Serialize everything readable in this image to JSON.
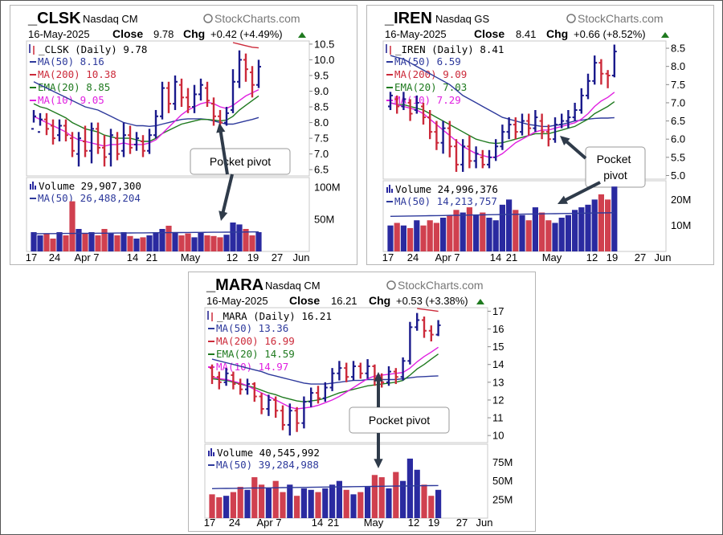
{
  "brand": "StockCharts.com",
  "callout_text": "Pocket pivot",
  "colors": {
    "up_bar": "#1a1a8c",
    "down_bar": "#cc2a3a",
    "ma50": "#2e3a9c",
    "ma200": "#cc2a3a",
    "ema20": "#1f7a1f",
    "ma10": "#e020e0",
    "volume_up": "#2a2aa0",
    "volume_down": "#d0404f",
    "gain": "#1f7a1f"
  },
  "icons": [
    "candlestick-icon",
    "bar-chart-icon",
    "gain-triangle-icon",
    "stockcharts-logo-icon",
    "arrow-icon"
  ],
  "chart_data": [
    {
      "type": "bar",
      "symbol": "_CLSK",
      "exchange": "Nasdaq CM",
      "date": "16-May-2025",
      "close_label": "Close",
      "close": "9.78",
      "chg_label": "Chg",
      "chg": "+0.42 (+4.49%)",
      "price_legend": "_CLSK (Daily) 9.78",
      "legend": [
        "MA(50) 8.16",
        "MA(200) 10.38",
        "EMA(20) 8.85",
        "MA(10) 9.05"
      ],
      "volume_legend": "Volume 29,907,300",
      "volume_ma_legend": "MA(50) 26,488,204",
      "price_ticks": [
        "10.5",
        "10.0",
        "9.5",
        "9.0",
        "8.5",
        "8.0",
        "7.5",
        "7.0",
        "6.5"
      ],
      "volume_ticks": [
        "100M",
        "50M"
      ],
      "x_labels": [
        "17",
        "24",
        "Apr 7",
        "14",
        "21",
        "May",
        "12",
        "19",
        "27",
        "Jun"
      ],
      "ylim": [
        6.3,
        10.6
      ],
      "vmax": 110,
      "bars": [
        [
          7.8,
          8.2,
          8.4,
          8.0
        ],
        [
          7.7,
          8.1,
          8.3,
          7.9
        ],
        [
          8.1,
          7.8,
          8.3,
          7.6
        ],
        [
          7.9,
          7.5,
          8.1,
          7.3
        ],
        [
          7.6,
          7.9,
          8.1,
          7.4
        ],
        [
          7.9,
          7.6,
          8.1,
          7.4
        ],
        [
          7.5,
          7.1,
          7.7,
          6.9
        ],
        [
          7.0,
          7.5,
          7.7,
          6.6
        ],
        [
          7.4,
          7.1,
          7.9,
          6.9
        ],
        [
          7.1,
          7.8,
          8.0,
          6.7
        ],
        [
          7.8,
          7.2,
          8.0,
          7.0
        ],
        [
          7.2,
          6.9,
          7.6,
          6.6
        ],
        [
          7.0,
          7.6,
          7.8,
          6.6
        ],
        [
          7.5,
          7.0,
          7.7,
          6.8
        ],
        [
          7.1,
          7.6,
          8.0,
          6.9
        ],
        [
          7.6,
          7.2,
          7.9,
          7.0
        ],
        [
          7.3,
          7.5,
          7.7,
          7.1
        ],
        [
          7.4,
          7.1,
          7.6,
          6.9
        ],
        [
          7.1,
          7.6,
          7.8,
          7.0
        ],
        [
          7.6,
          8.2,
          8.4,
          7.5
        ],
        [
          8.2,
          9.1,
          9.3,
          8.1
        ],
        [
          9.1,
          8.6,
          9.3,
          8.3
        ],
        [
          8.6,
          9.3,
          9.5,
          8.4
        ],
        [
          9.2,
          8.8,
          9.4,
          8.5
        ],
        [
          8.8,
          8.5,
          9.1,
          8.3
        ],
        [
          8.5,
          8.9,
          9.2,
          8.3
        ],
        [
          8.9,
          9.2,
          9.4,
          8.7
        ],
        [
          9.1,
          8.7,
          9.3,
          8.5
        ],
        [
          8.6,
          8.2,
          8.8,
          7.9
        ],
        [
          8.2,
          8.0,
          8.4,
          7.8
        ],
        [
          8.0,
          8.3,
          8.5,
          7.9
        ],
        [
          8.4,
          9.3,
          9.7,
          8.3
        ],
        [
          9.3,
          10.0,
          10.3,
          9.1
        ],
        [
          10.0,
          9.7,
          10.2,
          9.3
        ],
        [
          9.6,
          9.2,
          9.8,
          8.8
        ],
        [
          9.2,
          9.78,
          10.0,
          9.1
        ]
      ],
      "volume": [
        30,
        25,
        28,
        20,
        30,
        25,
        78,
        35,
        28,
        30,
        25,
        35,
        28,
        25,
        30,
        24,
        20,
        22,
        25,
        30,
        35,
        40,
        30,
        25,
        28,
        22,
        30,
        25,
        24,
        22,
        26,
        45,
        42,
        35,
        25,
        30
      ],
      "ma50": [
        9.3,
        9.2,
        9.1,
        9.0,
        8.9,
        8.8,
        8.7,
        8.6,
        8.5,
        8.45,
        8.4,
        8.3,
        8.2,
        8.1,
        8.0,
        7.95,
        7.9,
        7.9,
        7.88,
        7.9,
        7.95,
        8.0,
        8.05,
        8.1,
        8.12,
        8.12,
        8.12,
        8.1,
        8.05,
        8.0,
        7.95,
        7.95,
        8.0,
        8.05,
        8.1,
        8.16
      ],
      "ma200": [
        null,
        null,
        null,
        null,
        null,
        null,
        null,
        null,
        null,
        null,
        null,
        null,
        null,
        null,
        null,
        null,
        null,
        null,
        null,
        null,
        null,
        null,
        null,
        null,
        null,
        null,
        null,
        null,
        null,
        null,
        null,
        10.55,
        10.5,
        10.45,
        10.4,
        10.38
      ],
      "ema20": [
        8.6,
        8.5,
        8.45,
        8.35,
        8.25,
        8.15,
        8.0,
        7.9,
        7.8,
        7.75,
        7.7,
        7.6,
        7.55,
        7.5,
        7.5,
        7.5,
        7.45,
        7.4,
        7.4,
        7.5,
        7.65,
        7.75,
        7.85,
        7.95,
        8.0,
        8.05,
        8.1,
        8.1,
        8.08,
        8.05,
        8.08,
        8.2,
        8.4,
        8.55,
        8.7,
        8.85
      ],
      "ma10": [
        8.2,
        8.1,
        8.0,
        7.9,
        7.8,
        7.7,
        7.55,
        7.45,
        7.4,
        7.35,
        7.3,
        7.25,
        7.3,
        7.3,
        7.35,
        7.3,
        7.3,
        7.3,
        7.35,
        7.45,
        7.65,
        7.85,
        8.05,
        8.25,
        8.4,
        8.5,
        8.6,
        8.65,
        8.6,
        8.5,
        8.45,
        8.55,
        8.7,
        8.85,
        8.95,
        9.05
      ],
      "pivot_bar": 31
    },
    {
      "type": "bar",
      "symbol": "_IREN",
      "exchange": "Nasdaq GS",
      "date": "16-May-2025",
      "close_label": "Close",
      "close": "8.41",
      "chg_label": "Chg",
      "chg": "+0.66 (+8.52%)",
      "price_legend": "_IREN (Daily) 8.41",
      "legend": [
        "MA(50) 6.59",
        "MA(200) 9.09",
        "EMA(20) 7.03",
        "MA(10) 7.29"
      ],
      "volume_legend": "Volume 24,996,376",
      "volume_ma_legend": "MA(50) 14,213,757",
      "price_ticks": [
        "8.5",
        "8.0",
        "7.5",
        "7.0",
        "6.5",
        "6.0",
        "5.5",
        "5.0"
      ],
      "volume_ticks": [
        "20M",
        "10M"
      ],
      "x_labels": [
        "17",
        "24",
        "Apr 7",
        "14",
        "21",
        "May",
        "12",
        "19",
        "27",
        "Jun"
      ],
      "ylim": [
        4.9,
        8.7
      ],
      "vmax": 26,
      "bars": [
        [
          6.9,
          7.2,
          7.3,
          6.8
        ],
        [
          7.1,
          6.9,
          7.2,
          6.7
        ],
        [
          6.9,
          7.1,
          7.3,
          6.8
        ],
        [
          7.0,
          6.7,
          7.1,
          6.5
        ],
        [
          6.8,
          7.0,
          7.2,
          6.7
        ],
        [
          6.9,
          6.6,
          7.0,
          6.4
        ],
        [
          6.6,
          6.2,
          6.8,
          6.0
        ],
        [
          6.2,
          5.9,
          6.5,
          5.7
        ],
        [
          5.9,
          6.3,
          6.5,
          5.6
        ],
        [
          6.3,
          5.8,
          6.5,
          5.5
        ],
        [
          5.8,
          5.3,
          6.0,
          5.1
        ],
        [
          5.3,
          5.8,
          6.0,
          5.1
        ],
        [
          5.8,
          5.4,
          6.1,
          5.2
        ],
        [
          5.4,
          5.6,
          5.8,
          5.2
        ],
        [
          5.5,
          5.3,
          5.7,
          5.2
        ],
        [
          5.3,
          5.5,
          5.7,
          5.2
        ],
        [
          5.5,
          5.8,
          6.0,
          5.4
        ],
        [
          5.8,
          6.2,
          6.4,
          5.7
        ],
        [
          6.2,
          6.4,
          6.6,
          6.0
        ],
        [
          6.4,
          6.2,
          6.6,
          6.0
        ],
        [
          6.2,
          6.5,
          6.7,
          6.1
        ],
        [
          6.5,
          6.3,
          6.7,
          6.1
        ],
        [
          6.3,
          6.6,
          6.8,
          6.2
        ],
        [
          6.5,
          6.2,
          6.7,
          6.0
        ],
        [
          6.2,
          6.0,
          6.4,
          5.8
        ],
        [
          6.0,
          6.4,
          6.6,
          5.9
        ],
        [
          6.4,
          6.5,
          6.7,
          6.3
        ],
        [
          6.5,
          6.6,
          6.8,
          6.3
        ],
        [
          6.6,
          6.8,
          7.0,
          6.5
        ],
        [
          6.8,
          7.2,
          7.4,
          6.7
        ],
        [
          7.2,
          7.6,
          7.8,
          7.1
        ],
        [
          7.6,
          8.1,
          8.3,
          7.5
        ],
        [
          8.1,
          7.8,
          8.2,
          7.5
        ],
        [
          7.8,
          7.75,
          7.9,
          7.4
        ],
        [
          7.75,
          8.41,
          8.6,
          7.7
        ]
      ],
      "volume": [
        10,
        11,
        10,
        9,
        12,
        10,
        12,
        11,
        13,
        14,
        16,
        15,
        17,
        14,
        15,
        13,
        12,
        18,
        20,
        16,
        14,
        12,
        17,
        15,
        12,
        11,
        13,
        14,
        16,
        17,
        18,
        20,
        22,
        20,
        25
      ],
      "ma50": [
        8.3,
        8.25,
        8.2,
        8.1,
        8.0,
        7.9,
        7.8,
        7.7,
        7.6,
        7.5,
        7.35,
        7.2,
        7.1,
        7.0,
        6.9,
        6.8,
        6.7,
        6.6,
        6.55,
        6.5,
        6.45,
        6.4,
        6.38,
        6.35,
        6.35,
        6.38,
        6.4,
        6.45,
        6.5,
        6.52,
        6.55,
        6.57,
        6.58,
        6.58,
        6.59
      ],
      "ma200": [
        null,
        null,
        null,
        null,
        null,
        null,
        null,
        null,
        null,
        null,
        null,
        null,
        null,
        null,
        null,
        null,
        null,
        null,
        null,
        null,
        null,
        null,
        null,
        null,
        null,
        null,
        null,
        null,
        null,
        null,
        null,
        null,
        null,
        null,
        null
      ],
      "ema20": [
        7.0,
        6.95,
        6.95,
        6.9,
        6.85,
        6.8,
        6.7,
        6.6,
        6.5,
        6.4,
        6.3,
        6.2,
        6.1,
        6.0,
        5.95,
        5.9,
        5.88,
        5.9,
        5.95,
        6.0,
        6.05,
        6.1,
        6.15,
        6.15,
        6.15,
        6.2,
        6.25,
        6.3,
        6.35,
        6.45,
        6.55,
        6.7,
        6.8,
        6.9,
        7.03
      ],
      "ma10": [
        7.0,
        6.95,
        6.9,
        6.85,
        6.8,
        6.7,
        6.55,
        6.4,
        6.25,
        6.1,
        5.95,
        5.8,
        5.7,
        5.6,
        5.55,
        5.5,
        5.5,
        5.6,
        5.75,
        5.9,
        6.0,
        6.1,
        6.2,
        6.25,
        6.25,
        6.3,
        6.35,
        6.4,
        6.45,
        6.55,
        6.7,
        6.9,
        7.05,
        7.15,
        7.29
      ],
      "pivot_bar": 24
    },
    {
      "type": "bar",
      "symbol": "_MARA",
      "exchange": "Nasdaq CM",
      "date": "16-May-2025",
      "close_label": "Close",
      "close": "16.21",
      "chg_label": "Chg",
      "chg": "+0.53 (+3.38%)",
      "price_legend": "_MARA (Daily) 16.21",
      "legend": [
        "MA(50) 13.36",
        "MA(200) 16.99",
        "EMA(20) 14.59",
        "MA(10) 14.97"
      ],
      "volume_legend": "Volume 40,545,992",
      "volume_ma_legend": "MA(50) 39,284,988",
      "price_ticks": [
        "17",
        "16",
        "15",
        "14",
        "13",
        "12",
        "11",
        "10"
      ],
      "volume_ticks": [
        "75M",
        "50M",
        "25M"
      ],
      "x_labels": [
        "17",
        "24",
        "Apr 7",
        "14",
        "21",
        "May",
        "12",
        "19",
        "27",
        "Jun"
      ],
      "ylim": [
        9.6,
        17.2
      ],
      "vmax": 95,
      "bars": [
        [
          13.8,
          13.3,
          14.0,
          12.9
        ],
        [
          13.3,
          13.0,
          13.6,
          12.6
        ],
        [
          13.0,
          13.5,
          13.8,
          12.8
        ],
        [
          13.4,
          12.9,
          13.6,
          12.6
        ],
        [
          12.9,
          12.6,
          13.2,
          12.3
        ],
        [
          12.6,
          12.9,
          13.2,
          12.3
        ],
        [
          12.9,
          12.2,
          13.0,
          11.9
        ],
        [
          12.2,
          11.5,
          12.4,
          11.2
        ],
        [
          11.5,
          12.0,
          12.3,
          11.1
        ],
        [
          12.0,
          11.4,
          12.2,
          11.0
        ],
        [
          11.4,
          10.6,
          11.7,
          10.3
        ],
        [
          10.6,
          11.4,
          11.8,
          10.0
        ],
        [
          11.4,
          10.7,
          11.6,
          10.2
        ],
        [
          10.7,
          11.9,
          12.2,
          10.4
        ],
        [
          11.9,
          12.4,
          12.7,
          11.6
        ],
        [
          12.4,
          12.1,
          12.8,
          11.8
        ],
        [
          12.1,
          12.7,
          13.0,
          11.9
        ],
        [
          12.7,
          13.5,
          13.8,
          12.5
        ],
        [
          13.5,
          13.8,
          14.2,
          13.1
        ],
        [
          13.8,
          13.3,
          14.1,
          13.0
        ],
        [
          13.3,
          13.9,
          14.2,
          13.1
        ],
        [
          13.9,
          13.5,
          14.1,
          13.2
        ],
        [
          13.5,
          13.9,
          14.3,
          13.2
        ],
        [
          13.9,
          13.2,
          14.0,
          12.8
        ],
        [
          13.2,
          13.0,
          13.5,
          12.7
        ],
        [
          13.0,
          13.6,
          13.9,
          12.8
        ],
        [
          13.6,
          13.3,
          13.8,
          12.9
        ],
        [
          13.3,
          14.2,
          14.4,
          13.1
        ],
        [
          14.2,
          16.1,
          16.4,
          14.0
        ],
        [
          16.1,
          16.5,
          16.9,
          15.9
        ],
        [
          16.5,
          15.9,
          16.7,
          15.5
        ],
        [
          15.9,
          15.68,
          16.2,
          15.3
        ],
        [
          15.68,
          16.21,
          16.5,
          15.6
        ]
      ],
      "volume": [
        32,
        28,
        30,
        35,
        42,
        38,
        55,
        45,
        40,
        50,
        35,
        45,
        30,
        40,
        38,
        35,
        40,
        45,
        50,
        38,
        32,
        35,
        42,
        58,
        55,
        40,
        62,
        50,
        80,
        65,
        45,
        30,
        38
      ],
      "ma50": [
        14.3,
        14.2,
        14.1,
        14.0,
        13.9,
        13.8,
        13.7,
        13.6,
        13.45,
        13.35,
        13.25,
        13.15,
        13.05,
        12.95,
        12.9,
        12.9,
        12.9,
        12.95,
        13.0,
        13.05,
        13.1,
        13.1,
        13.15,
        13.15,
        13.15,
        13.15,
        13.15,
        13.2,
        13.25,
        13.3,
        13.32,
        13.34,
        13.36
      ],
      "ma200": [
        null,
        null,
        null,
        null,
        null,
        null,
        null,
        null,
        null,
        null,
        null,
        null,
        null,
        null,
        null,
        null,
        null,
        null,
        null,
        null,
        null,
        null,
        null,
        null,
        null,
        null,
        null,
        null,
        null,
        17.15,
        17.1,
        17.05,
        16.99
      ],
      "ema20": [
        13.2,
        13.15,
        13.1,
        13.0,
        12.9,
        12.8,
        12.7,
        12.55,
        12.4,
        12.3,
        12.15,
        12.05,
        11.95,
        11.9,
        11.95,
        12.0,
        12.1,
        12.25,
        12.4,
        12.5,
        12.6,
        12.7,
        12.8,
        12.85,
        12.9,
        12.95,
        13.0,
        13.1,
        13.4,
        13.75,
        14.0,
        14.3,
        14.59
      ],
      "ma10": [
        13.3,
        13.2,
        13.15,
        13.05,
        12.95,
        12.8,
        12.6,
        12.4,
        12.2,
        12.0,
        11.8,
        11.6,
        11.5,
        11.55,
        11.6,
        11.7,
        11.85,
        12.0,
        12.2,
        12.45,
        12.7,
        12.95,
        13.2,
        13.35,
        13.4,
        13.45,
        13.5,
        13.55,
        13.8,
        14.15,
        14.45,
        14.7,
        14.97
      ],
      "pivot_bar": 28
    }
  ]
}
